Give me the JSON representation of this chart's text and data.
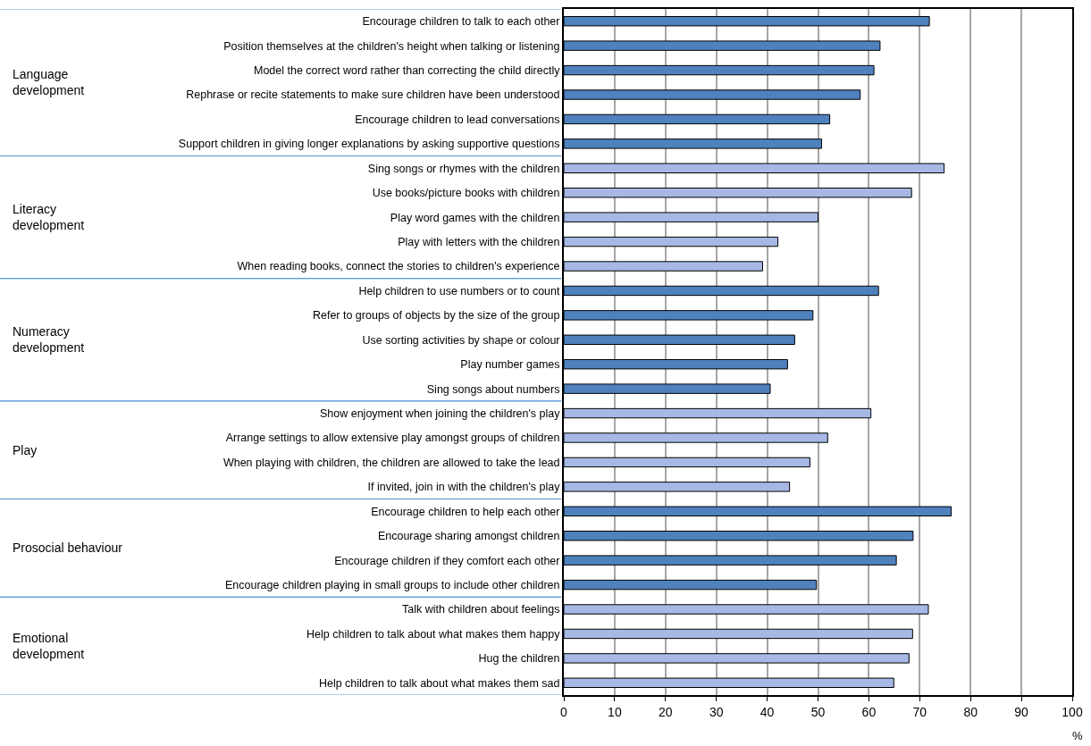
{
  "chart_data": {
    "type": "bar",
    "orientation": "horizontal",
    "xlabel": "%",
    "categories": [
      "Encourage children to talk to each other",
      "Position themselves at the children's height when talking or listening",
      "Model the correct word rather than correcting the child directly",
      "Rephrase or recite statements to make sure children have been understood",
      "Encourage children to lead conversations",
      "Support children in giving longer explanations by asking supportive questions",
      "Sing songs or rhymes with the children",
      "Use books/picture books with children",
      "Play word games with the children",
      "Play with letters with the children",
      "When reading books, connect the stories to children's experience",
      "Help children to use numbers or to count",
      "Refer to groups of objects by the size of the group",
      "Use sorting activities by shape or colour",
      "Play number games",
      "Sing songs about numbers",
      "Show enjoyment when joining the children's play",
      "Arrange settings to allow extensive play amongst groups of children",
      "When playing with children, the children are allowed to take the lead",
      "If invited, join in with the children's play",
      "Encourage children to help each other",
      "Encourage sharing amongst children",
      "Encourage children if they comfort each other",
      "Encourage children playing in small groups to include other children",
      "Talk with children about feelings",
      "Help children to talk about what makes them happy",
      "Hug the children",
      "Help children to talk about what makes them sad"
    ],
    "values": [
      71.9,
      62.2,
      61.0,
      58.3,
      52.3,
      50.7,
      74.8,
      68.4,
      50.0,
      42.1,
      39.1,
      61.9,
      49.0,
      45.4,
      44.0,
      40.6,
      60.4,
      51.9,
      48.4,
      44.4,
      76.2,
      68.7,
      65.4,
      49.7,
      71.7,
      68.6,
      67.9,
      64.9
    ],
    "colors": [
      "#4f81bd",
      "#4f81bd",
      "#4f81bd",
      "#4f81bd",
      "#4f81bd",
      "#4f81bd",
      "#a6b8e3",
      "#a6b8e3",
      "#a6b8e3",
      "#a6b8e3",
      "#a6b8e3",
      "#4f81bd",
      "#4f81bd",
      "#4f81bd",
      "#4f81bd",
      "#4f81bd",
      "#a6b8e3",
      "#a6b8e3",
      "#a6b8e3",
      "#a6b8e3",
      "#4f81bd",
      "#4f81bd",
      "#4f81bd",
      "#4f81bd",
      "#a6b8e3",
      "#a6b8e3",
      "#a6b8e3",
      "#a6b8e3"
    ],
    "xlim": [
      0,
      100
    ],
    "xticks": [
      0,
      10,
      20,
      30,
      40,
      50,
      60,
      70,
      80,
      90,
      100
    ],
    "grid": "x",
    "annotations": [
      "Language development",
      "Literacy development",
      "Numeracy development",
      "Play",
      "Prosocial behaviour",
      "Emotional development"
    ]
  }
}
